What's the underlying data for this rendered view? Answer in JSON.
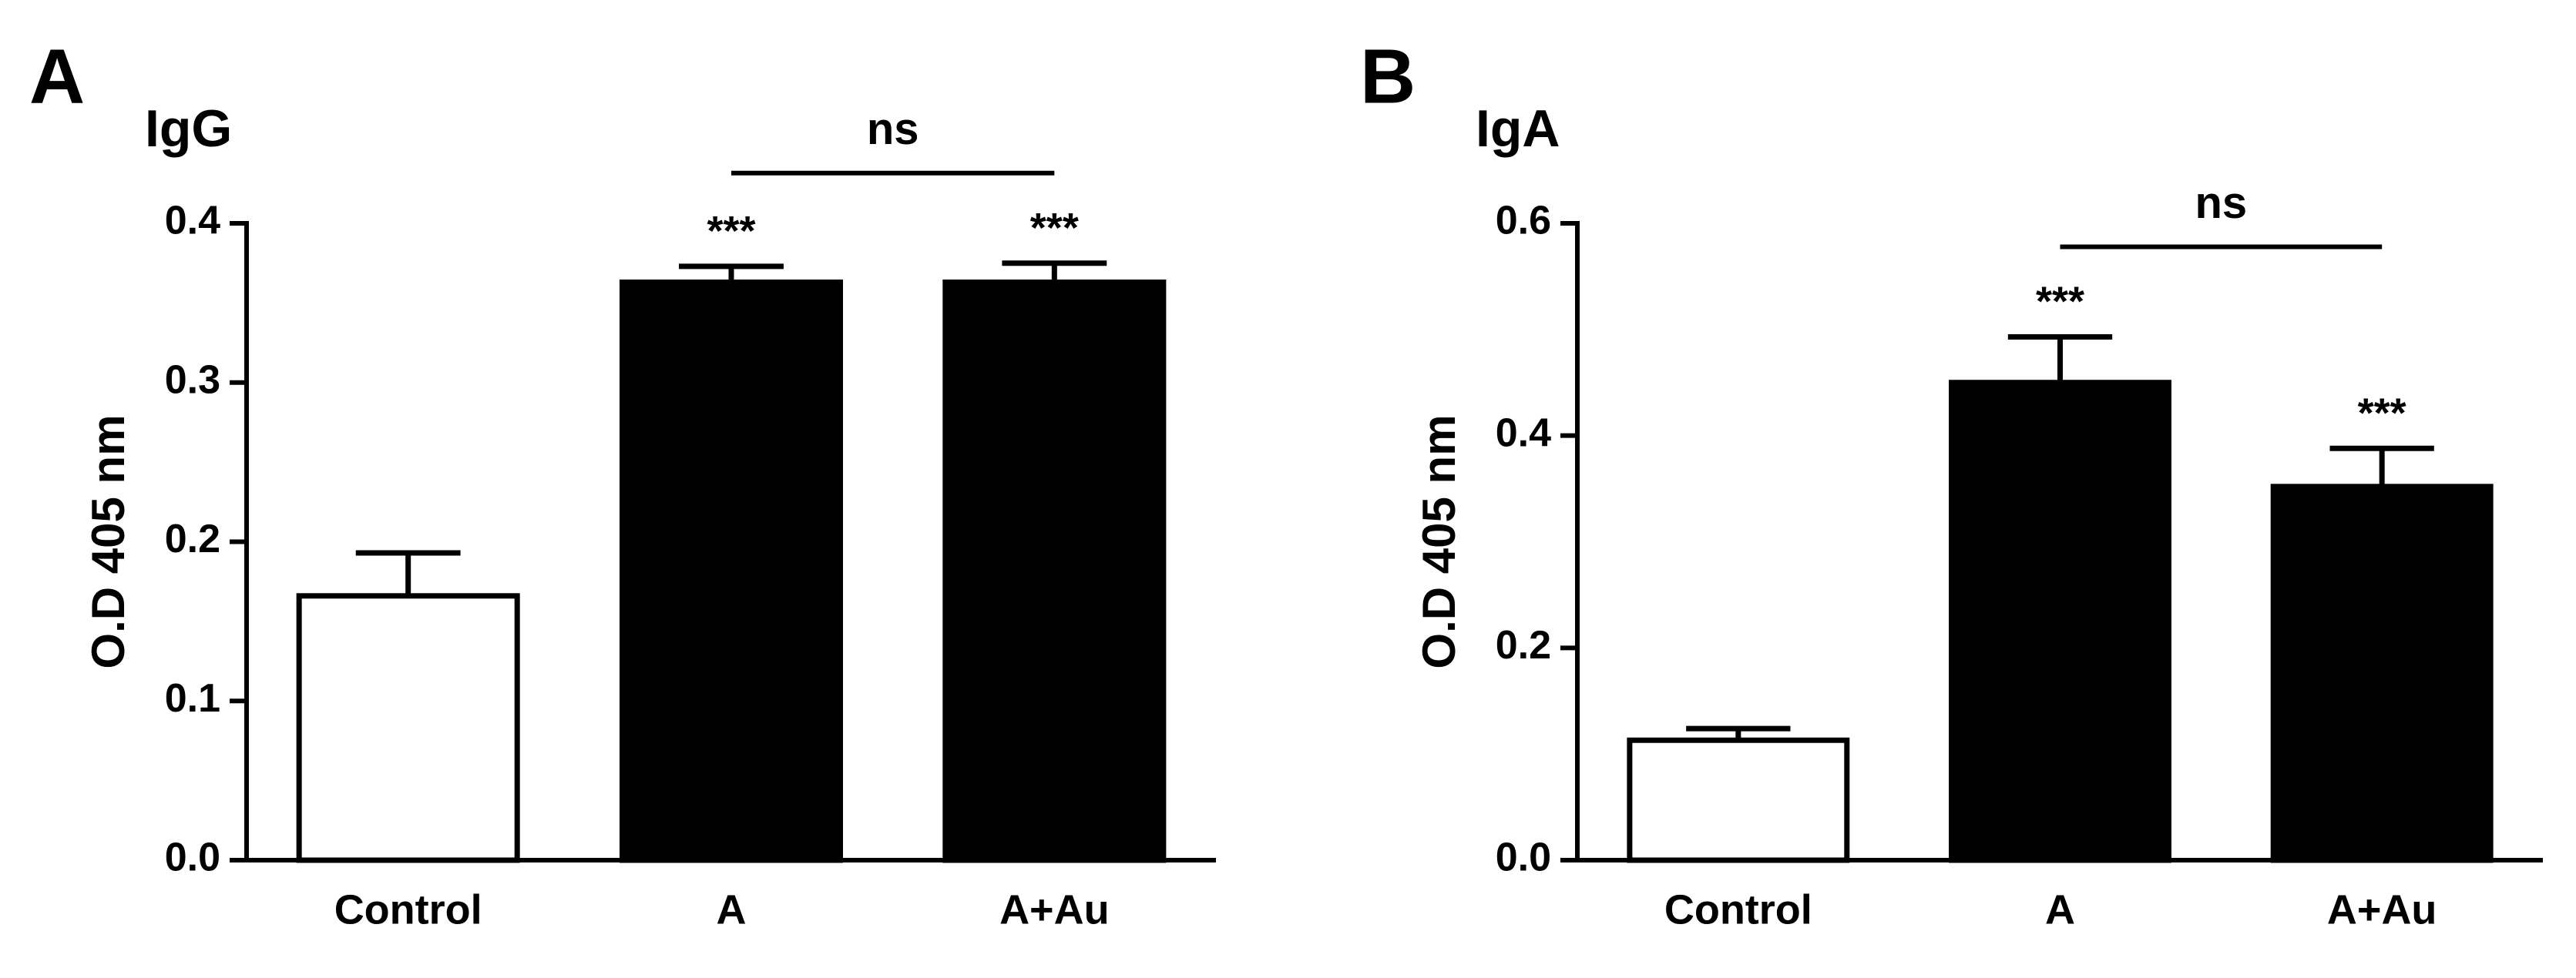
{
  "chart_data": [
    {
      "type": "bar",
      "panel": "A",
      "title": "IgG",
      "y_label": "O.D 405 nm",
      "categories": [
        "Control",
        "A",
        "A+Au"
      ],
      "values": [
        0.166,
        0.363,
        0.363
      ],
      "errors": [
        0.027,
        0.01,
        0.012
      ],
      "colors": [
        "#ffffff",
        "#000000",
        "#000000"
      ],
      "significance": [
        null,
        "***",
        "***"
      ],
      "comparison": {
        "label": "ns",
        "groups": [
          "A",
          "A+Au"
        ]
      },
      "ylim": [
        0,
        0.4
      ],
      "yticks": [
        {
          "value": 0,
          "label": "0.0"
        },
        0.1,
        0.2,
        0.3,
        0.4
      ]
    },
    {
      "type": "bar",
      "panel": "B",
      "title": "IgA",
      "y_label": "O.D 405 nm",
      "categories": [
        "Control",
        "A",
        "A+Au"
      ],
      "values": [
        0.113,
        0.45,
        0.352
      ],
      "errors": [
        0.011,
        0.043,
        0.036
      ],
      "colors": [
        "#ffffff",
        "#000000",
        "#000000"
      ],
      "significance": [
        null,
        "***",
        "***"
      ],
      "comparison": {
        "label": "ns",
        "groups": [
          "A",
          "A+Au"
        ]
      },
      "ylim": [
        0,
        0.6
      ],
      "yticks": [
        {
          "value": 0,
          "label": "0.0"
        },
        0.2,
        0.4,
        0.6
      ]
    }
  ]
}
